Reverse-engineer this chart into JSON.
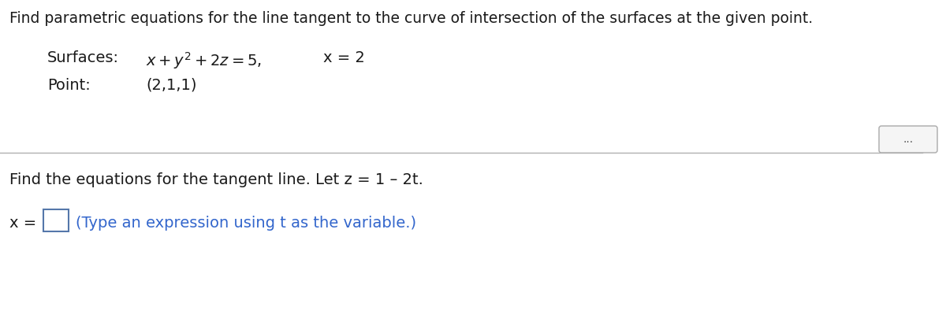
{
  "bg_color": "#ffffff",
  "title_text": "Find parametric equations for the line tangent to the curve of intersection of the surfaces at the given point.",
  "surfaces_label": "Surfaces:",
  "surfaces_math": "$x + y^{2} + 2z = 5,$",
  "surfaces_x2": "x = 2",
  "point_label": "Point:",
  "point_value": "(2,1,1)",
  "find_text": "Find the equations for the tangent line. Let z = 1 – 2t.",
  "x_eq_label": "x =",
  "type_hint": "(Type an expression using t as the variable.)",
  "font_color": "#1a1a1a",
  "hint_color": "#3366cc",
  "box_edge_color": "#5577aa",
  "font_size_title": 13.5,
  "font_size_body": 14,
  "font_size_math": 14
}
